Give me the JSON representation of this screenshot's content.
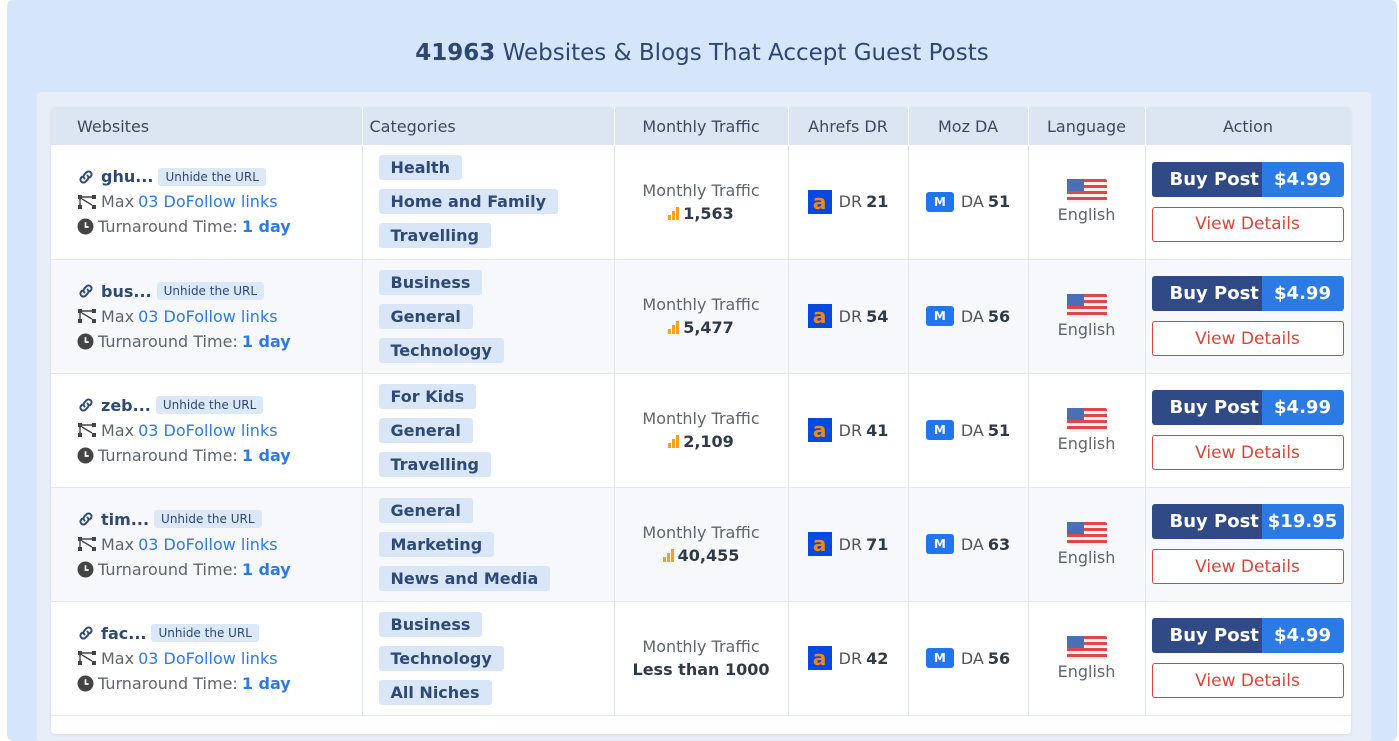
{
  "title": {
    "count": "41963",
    "text": " Websites & Blogs That Accept Guest Posts"
  },
  "columns": [
    "Websites",
    "Categories",
    "Monthly Traffic",
    "Ahrefs DR",
    "Moz DA",
    "Language",
    "Action"
  ],
  "labels": {
    "unhide": "Unhide the URL",
    "max": "Max",
    "dofollow": "03 DoFollow links",
    "turnaround": "Turnaround Time:",
    "turnaround_val": "1 day",
    "traffic": "Monthly Traffic",
    "dr": "DR",
    "da": "DA",
    "buy": "Buy Post",
    "view": "View Details",
    "ahrefs_glyph": "a",
    "moz_glyph": "M"
  },
  "rows": [
    {
      "domain": "ghu...",
      "categories": [
        "Health",
        "Home and Family",
        "Travelling"
      ],
      "traffic": "1,563",
      "dr": "21",
      "da": "51",
      "language": "English",
      "price": "$4.99"
    },
    {
      "domain": "bus...",
      "categories": [
        "Business",
        "General",
        "Technology"
      ],
      "traffic": "5,477",
      "dr": "54",
      "da": "56",
      "language": "English",
      "price": "$4.99"
    },
    {
      "domain": "zeb...",
      "categories": [
        "For Kids",
        "General",
        "Travelling"
      ],
      "traffic": "2,109",
      "dr": "41",
      "da": "51",
      "language": "English",
      "price": "$4.99"
    },
    {
      "domain": "tim...",
      "categories": [
        "General",
        "Marketing",
        "News and Media"
      ],
      "traffic": "40,455",
      "dr": "71",
      "da": "63",
      "language": "English",
      "price": "$19.95"
    },
    {
      "domain": "fac...",
      "categories": [
        "Business",
        "Technology",
        "All Niches"
      ],
      "traffic": "Less than 1000",
      "dr": "42",
      "da": "56",
      "language": "English",
      "price": "$4.99"
    }
  ]
}
